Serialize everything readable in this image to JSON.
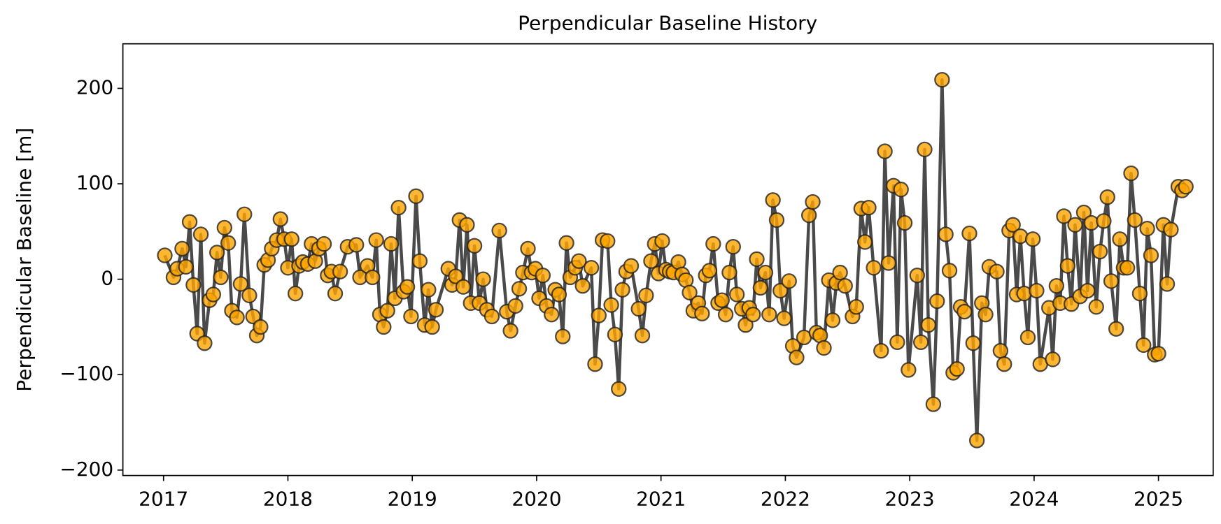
{
  "chart_data": {
    "type": "line",
    "title": "Perpendicular Baseline History",
    "ylabel": "Perpendicular Baseline [m]",
    "x": [
      2017.01,
      2017.08,
      2017.11,
      2017.15,
      2017.18,
      2017.21,
      2017.24,
      2017.27,
      2017.3,
      2017.33,
      2017.37,
      2017.4,
      2017.43,
      2017.46,
      2017.49,
      2017.52,
      2017.55,
      2017.59,
      2017.62,
      2017.65,
      2017.69,
      2017.72,
      2017.75,
      2017.78,
      2017.81,
      2017.84,
      2017.87,
      2017.91,
      2017.94,
      2017.97,
      2018.0,
      2018.03,
      2018.06,
      2018.09,
      2018.12,
      2018.16,
      2018.19,
      2018.22,
      2018.25,
      2018.29,
      2018.32,
      2018.35,
      2018.38,
      2018.42,
      2018.48,
      2018.55,
      2018.58,
      2018.64,
      2018.68,
      2018.71,
      2018.74,
      2018.77,
      2018.8,
      2018.83,
      2018.86,
      2018.89,
      2018.93,
      2018.96,
      2018.99,
      2019.03,
      2019.06,
      2019.1,
      2019.13,
      2019.16,
      2019.19,
      2019.29,
      2019.32,
      2019.35,
      2019.38,
      2019.41,
      2019.44,
      2019.47,
      2019.5,
      2019.54,
      2019.57,
      2019.6,
      2019.64,
      2019.7,
      2019.76,
      2019.79,
      2019.83,
      2019.86,
      2019.89,
      2019.93,
      2019.96,
      2019.99,
      2020.02,
      2020.05,
      2020.08,
      2020.12,
      2020.15,
      2020.18,
      2020.21,
      2020.24,
      2020.27,
      2020.31,
      2020.34,
      2020.37,
      2020.44,
      2020.47,
      2020.5,
      2020.53,
      2020.57,
      2020.6,
      2020.63,
      2020.66,
      2020.69,
      2020.72,
      2020.76,
      2020.82,
      2020.85,
      2020.88,
      2020.92,
      2020.95,
      2020.98,
      2021.01,
      2021.04,
      2021.07,
      2021.1,
      2021.14,
      2021.17,
      2021.2,
      2021.23,
      2021.26,
      2021.3,
      2021.33,
      2021.36,
      2021.39,
      2021.42,
      2021.46,
      2021.49,
      2021.52,
      2021.55,
      2021.58,
      2021.61,
      2021.65,
      2021.68,
      2021.71,
      2021.74,
      2021.77,
      2021.8,
      2021.84,
      2021.87,
      2021.9,
      2021.93,
      2021.96,
      2021.99,
      2022.03,
      2022.06,
      2022.09,
      2022.15,
      2022.19,
      2022.22,
      2022.25,
      2022.28,
      2022.31,
      2022.35,
      2022.38,
      2022.41,
      2022.44,
      2022.48,
      2022.54,
      2022.57,
      2022.61,
      2022.64,
      2022.67,
      2022.71,
      2022.77,
      2022.8,
      2022.83,
      2022.87,
      2022.9,
      2022.93,
      2022.96,
      2022.99,
      2023.06,
      2023.09,
      2023.12,
      2023.15,
      2023.19,
      2023.22,
      2023.26,
      2023.29,
      2023.32,
      2023.35,
      2023.38,
      2023.41,
      2023.44,
      2023.48,
      2023.51,
      2023.54,
      2023.58,
      2023.61,
      2023.64,
      2023.7,
      2023.73,
      2023.76,
      2023.8,
      2023.83,
      2023.86,
      2023.89,
      2023.92,
      2023.95,
      2023.99,
      2024.02,
      2024.05,
      2024.12,
      2024.15,
      2024.18,
      2024.21,
      2024.24,
      2024.27,
      2024.3,
      2024.33,
      2024.37,
      2024.4,
      2024.43,
      2024.46,
      2024.5,
      2024.53,
      2024.56,
      2024.59,
      2024.62,
      2024.66,
      2024.69,
      2024.72,
      2024.75,
      2024.78,
      2024.81,
      2024.85,
      2024.88,
      2024.91,
      2024.94,
      2024.97,
      2025.0,
      2025.04,
      2025.07,
      2025.1,
      2025.16,
      2025.19,
      2025.22
    ],
    "values": [
      25,
      2,
      11,
      32,
      13,
      60,
      -6,
      -57,
      47,
      -67,
      -22,
      -16,
      28,
      2,
      54,
      38,
      -33,
      -40,
      -5,
      68,
      -17,
      -39,
      -59,
      -50,
      15,
      20,
      32,
      41,
      63,
      42,
      12,
      42,
      -15,
      14,
      18,
      16,
      37,
      19,
      32,
      37,
      4,
      8,
      -15,
      8,
      34,
      36,
      2,
      14,
      2,
      41,
      -37,
      -50,
      -33,
      37,
      -20,
      75,
      -13,
      -8,
      -39,
      87,
      19,
      -48,
      -11,
      -50,
      -32,
      11,
      -6,
      3,
      62,
      -8,
      57,
      -25,
      35,
      -25,
      0,
      -32,
      -39,
      51,
      -34,
      -54,
      -28,
      -10,
      7,
      32,
      7,
      11,
      -20,
      4,
      -28,
      -37,
      -11,
      -16,
      -60,
      38,
      2,
      12,
      19,
      -7,
      12,
      -89,
      -38,
      41,
      40,
      -27,
      -58,
      -115,
      -11,
      8,
      14,
      -31,
      -59,
      -17,
      19,
      37,
      6,
      40,
      10,
      8,
      7,
      18,
      5,
      -1,
      -14,
      -33,
      -25,
      -36,
      4,
      9,
      37,
      -25,
      -22,
      -37,
      7,
      34,
      -16,
      -31,
      -48,
      -30,
      -37,
      21,
      -9,
      7,
      -37,
      83,
      62,
      -12,
      -41,
      -2,
      -70,
      -82,
      -61,
      67,
      81,
      -56,
      -59,
      -72,
      -1,
      -43,
      -4,
      7,
      -7,
      -39,
      -29,
      74,
      39,
      75,
      12,
      -75,
      134,
      17,
      98,
      -66,
      94,
      59,
      -95,
      4,
      -66,
      136,
      -48,
      -131,
      -23,
      209,
      47,
      9,
      -98,
      -94,
      -29,
      -34,
      48,
      -67,
      -169,
      -25,
      -37,
      13,
      8,
      -75,
      -89,
      51,
      57,
      -16,
      45,
      -15,
      -61,
      42,
      -12,
      -89,
      -30,
      -84,
      -7,
      -25,
      66,
      14,
      -26,
      57,
      -18,
      70,
      -12,
      59,
      -29,
      29,
      61,
      86,
      -2,
      -52,
      42,
      12,
      12,
      111,
      62,
      -15,
      -69,
      53,
      25,
      -79,
      -78,
      57,
      -5,
      52,
      97,
      93,
      97
    ],
    "color": "#ffa500",
    "line_color": "#404040",
    "xlim": [
      2016.673,
      2025.44
    ],
    "xticks": [
      2017,
      2018,
      2019,
      2020,
      2021,
      2022,
      2023,
      2024,
      2025
    ],
    "ylim": [
      -205.7,
      246.7
    ],
    "yticks": [
      {
        "value": -200,
        "label": "−200"
      },
      {
        "value": -100,
        "label": "−100"
      },
      0,
      100,
      200
    ],
    "grid": false
  }
}
